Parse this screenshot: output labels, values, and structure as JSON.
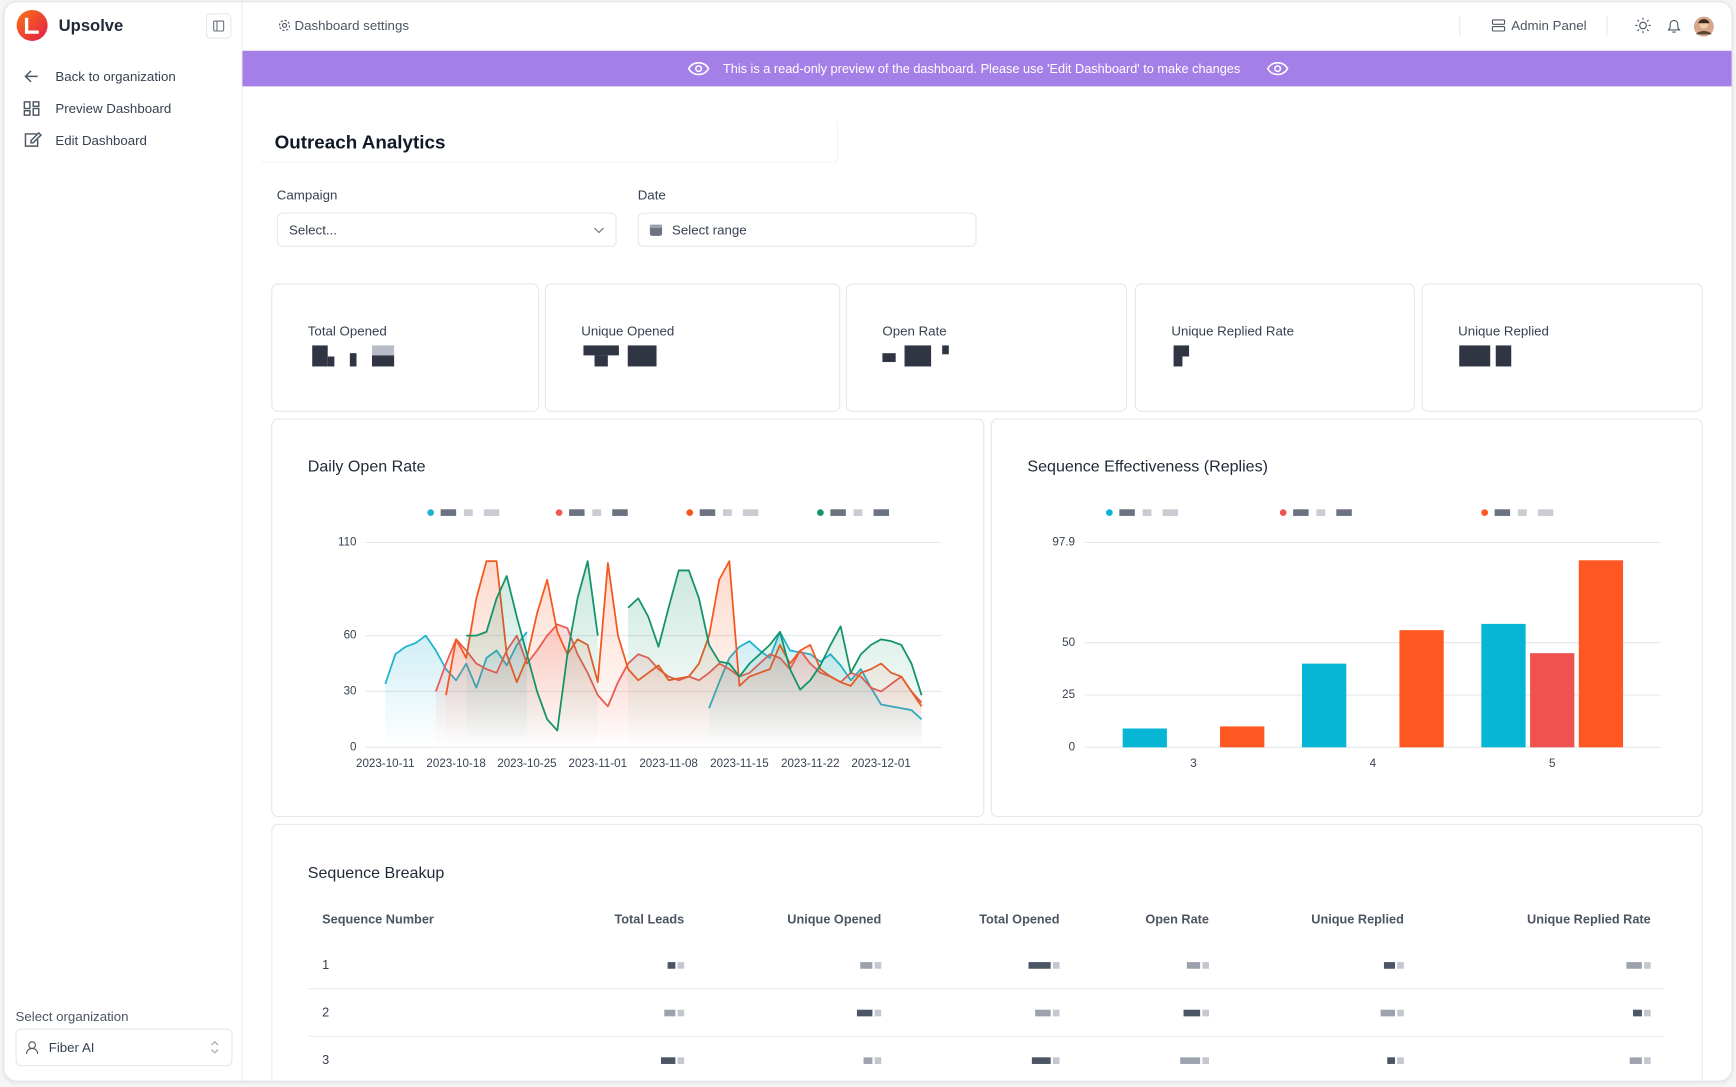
{
  "sidebar": {
    "brand": "Upsolve",
    "nav": [
      "Back to organization",
      "Preview Dashboard",
      "Edit Dashboard"
    ],
    "org_label": "Select organization",
    "org": "Fiber AI"
  },
  "topbar": {
    "settings": "Dashboard settings",
    "admin": "Admin Panel"
  },
  "banner": "This is a read-only preview of the dashboard. Please use 'Edit Dashboard' to make changes",
  "dashboard": {
    "title": "Outreach Analytics",
    "filters": [
      {
        "label": "Campaign",
        "placeholder": "Select..."
      },
      {
        "label": "Date",
        "placeholder": "Select range"
      }
    ],
    "kpis": [
      "Total Opened",
      "Unique Opened",
      "Open Rate",
      "Unique Replied Rate",
      "Unique Replied"
    ]
  },
  "chart_data": [
    {
      "type": "line",
      "title": "Daily Open Rate",
      "categories": [
        "2023-10-11",
        null,
        null,
        null,
        null,
        null,
        null,
        "2023-10-18",
        null,
        null,
        null,
        null,
        null,
        null,
        "2023-10-25",
        null,
        null,
        null,
        null,
        null,
        null,
        "2023-11-01",
        null,
        null,
        null,
        null,
        null,
        null,
        "2023-11-08",
        null,
        null,
        null,
        null,
        null,
        null,
        "2023-11-15",
        null,
        null,
        null,
        null,
        null,
        null,
        "2023-11-22",
        null,
        null,
        null,
        null,
        null,
        null,
        "2023-12-01",
        null,
        null,
        null,
        null
      ],
      "series": [
        {
          "color": "#1fb3d0",
          "values": [
            34,
            50,
            54,
            56,
            60,
            52,
            42,
            36,
            45,
            32,
            48,
            52,
            44,
            55,
            62,
            null,
            null,
            null,
            null,
            null,
            null,
            null,
            null,
            null,
            null,
            null,
            null,
            null,
            null,
            null,
            null,
            null,
            21,
            35,
            48,
            54,
            57,
            52,
            48,
            62,
            52,
            51,
            50,
            46,
            50,
            44,
            36,
            42,
            32,
            23,
            22,
            21,
            20,
            15
          ]
        },
        {
          "color": "#ec5b55",
          "values": [
            null,
            null,
            null,
            null,
            null,
            30,
            45,
            58,
            52,
            45,
            42,
            40,
            52,
            60,
            45,
            52,
            60,
            66,
            64,
            50,
            40,
            28,
            22,
            35,
            45,
            50,
            48,
            42,
            38,
            36,
            38,
            36,
            40,
            45,
            42,
            38,
            40,
            45,
            50,
            48,
            42,
            52,
            45,
            40,
            38,
            35,
            40,
            38,
            32,
            30,
            34,
            38,
            30,
            24
          ]
        },
        {
          "color": "#f4581f",
          "values": [
            null,
            null,
            null,
            null,
            null,
            null,
            28,
            58,
            48,
            80,
            100,
            100,
            50,
            35,
            48,
            72,
            90,
            62,
            50,
            58,
            55,
            35,
            99,
            60,
            42,
            36,
            40,
            44,
            36,
            37,
            38,
            45,
            60,
            90,
            100,
            33,
            38,
            40,
            42,
            55,
            45,
            52,
            55,
            42,
            38,
            35,
            33,
            40,
            42,
            45,
            40,
            38,
            30,
            22
          ]
        },
        {
          "color": "#13936a",
          "values": [
            null,
            null,
            null,
            null,
            null,
            null,
            null,
            null,
            60,
            60,
            62,
            80,
            92,
            70,
            50,
            30,
            15,
            9,
            50,
            80,
            100,
            60,
            null,
            null,
            75,
            80,
            70,
            54,
            75,
            95,
            95,
            80,
            55,
            46,
            45,
            38,
            45,
            50,
            55,
            62,
            42,
            31,
            36,
            44,
            55,
            65,
            40,
            50,
            55,
            58,
            57,
            55,
            45,
            28
          ]
        }
      ],
      "ylim": [
        0,
        110
      ],
      "yticks": [
        0,
        30,
        60,
        110
      ],
      "grid": true
    },
    {
      "type": "bar",
      "title": "Sequence Effectiveness (Replies)",
      "categories": [
        "3",
        "4",
        "5"
      ],
      "series": [
        {
          "color": "#06b6d4",
          "values": [
            9,
            40,
            59
          ]
        },
        {
          "color": "#ef5350",
          "values": [
            null,
            null,
            45
          ]
        },
        {
          "color": "#ff5722",
          "values": [
            10,
            56,
            89.4
          ]
        }
      ],
      "ylim": [
        0,
        97.9
      ],
      "yticks": [
        0,
        25,
        50,
        97.9
      ],
      "grid": true
    }
  ],
  "table": {
    "title": "Sequence Breakup",
    "columns": [
      "Sequence Number",
      "Total Leads",
      "Unique Opened",
      "Total Opened",
      "Open Rate",
      "Unique Replied",
      "Unique Replied Rate"
    ],
    "rows": [
      [
        "1"
      ],
      [
        "2"
      ],
      [
        "3"
      ]
    ]
  }
}
